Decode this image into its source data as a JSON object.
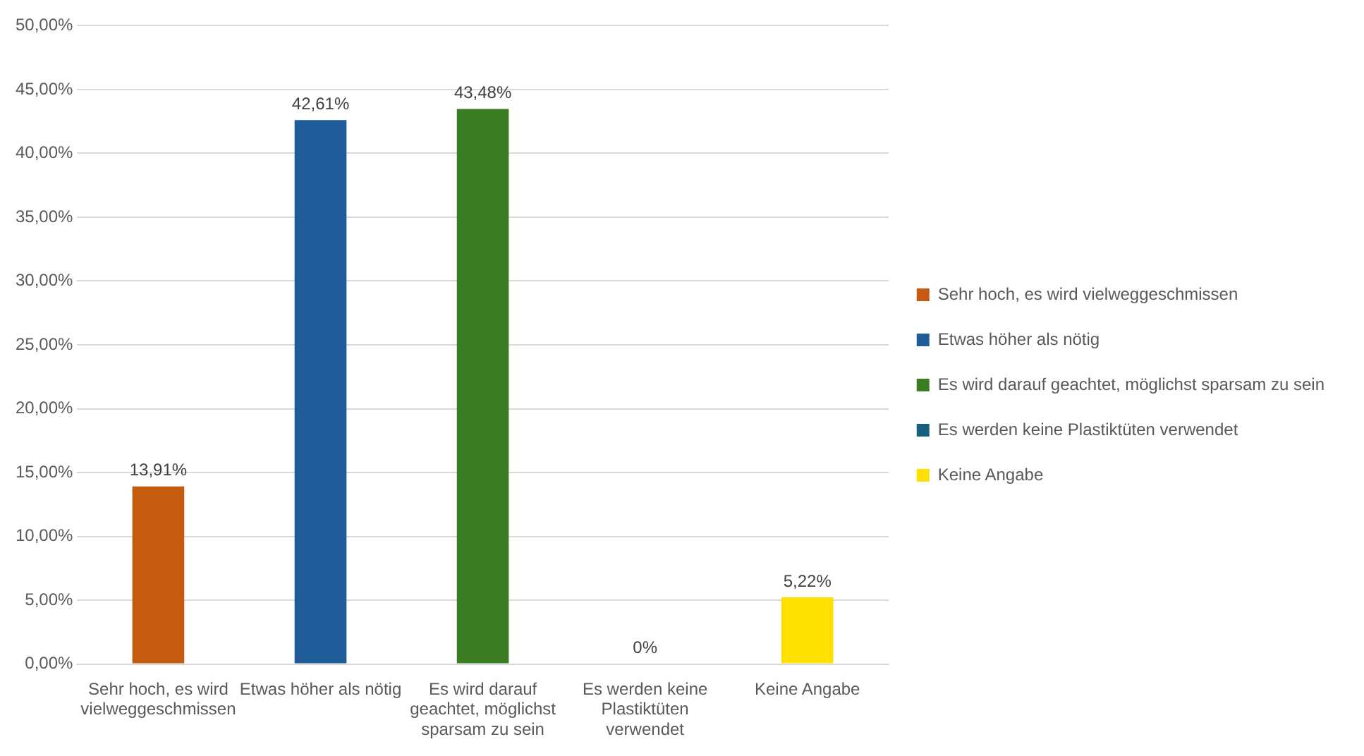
{
  "chart_data": {
    "type": "bar",
    "categories": [
      "Sehr hoch, es wird vielweggeschmissen",
      "Etwas höher als nötig",
      "Es wird darauf geachtet, möglichst sparsam zu sein",
      "Es werden keine Plastiktüten verwendet",
      "Keine Angabe"
    ],
    "series": [
      {
        "name": "Sehr hoch, es wird vielweggeschmissen",
        "color": "#c55a11",
        "values": [
          13.91,
          null,
          null,
          null,
          null
        ],
        "value_labels": [
          "13,91%",
          null,
          null,
          null,
          null
        ]
      },
      {
        "name": "Etwas höher als nötig",
        "color": "#1f5c99",
        "values": [
          null,
          42.61,
          null,
          null,
          null
        ],
        "value_labels": [
          null,
          "42,61%",
          null,
          null,
          null
        ]
      },
      {
        "name": "Es wird darauf geachtet, möglichst sparsam zu sein",
        "color": "#3a7d22",
        "values": [
          null,
          null,
          43.48,
          null,
          null
        ],
        "value_labels": [
          null,
          null,
          "43,48%",
          null,
          null
        ]
      },
      {
        "name": "Es werden keine Plastiktüten verwendet",
        "color": "#1a5e80",
        "values": [
          null,
          null,
          null,
          0,
          null
        ],
        "value_labels": [
          null,
          null,
          null,
          "0%",
          null
        ]
      },
      {
        "name": "Keine Angabe",
        "color": "#ffe000",
        "values": [
          null,
          null,
          null,
          null,
          5.22
        ],
        "value_labels": [
          null,
          null,
          null,
          null,
          "5,22%"
        ]
      }
    ],
    "ylim": [
      0,
      50
    ],
    "yticks": [
      {
        "value": 0,
        "label": "0,00%"
      },
      {
        "value": 5,
        "label": "5,00%"
      },
      {
        "value": 10,
        "label": "10,00%"
      },
      {
        "value": 15,
        "label": "15,00%"
      },
      {
        "value": 20,
        "label": "20,00%"
      },
      {
        "value": 25,
        "label": "25,00%"
      },
      {
        "value": 30,
        "label": "30,00%"
      },
      {
        "value": 35,
        "label": "35,00%"
      },
      {
        "value": 40,
        "label": "40,00%"
      },
      {
        "value": 45,
        "label": "45,00%"
      },
      {
        "value": 50,
        "label": "50,00%"
      }
    ],
    "grid": "y",
    "legend": "right"
  }
}
